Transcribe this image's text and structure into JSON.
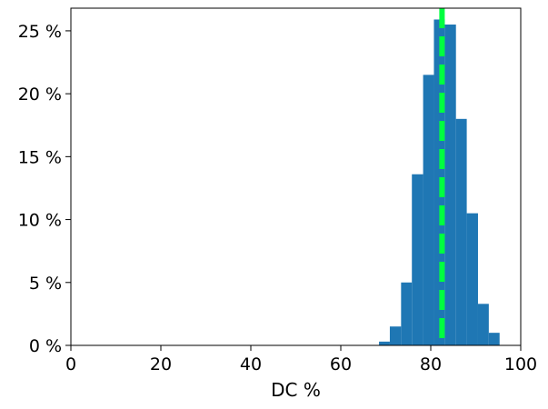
{
  "chart_data": {
    "type": "bar",
    "xlabel": "DC %",
    "ylabel": "",
    "xlim": [
      0,
      100
    ],
    "ylim": [
      0,
      26.8
    ],
    "x_ticks": [
      0,
      20,
      40,
      60,
      80,
      100
    ],
    "x_tick_labels": [
      "0",
      "20",
      "40",
      "60",
      "80",
      "100"
    ],
    "y_ticks": [
      0,
      5,
      10,
      15,
      20,
      25
    ],
    "y_tick_labels": [
      "0 %",
      "5 %",
      "10 %",
      "15 %",
      "20 %",
      "25 %"
    ],
    "grid": false,
    "bar_color": "#1f77b4",
    "bins": [
      {
        "x0": 68.5,
        "x1": 70.9,
        "value": 0.3
      },
      {
        "x0": 70.9,
        "x1": 73.4,
        "value": 1.5
      },
      {
        "x0": 73.4,
        "x1": 75.8,
        "value": 5.0
      },
      {
        "x0": 75.8,
        "x1": 78.3,
        "value": 13.6
      },
      {
        "x0": 78.3,
        "x1": 80.7,
        "value": 21.5
      },
      {
        "x0": 80.7,
        "x1": 83.1,
        "value": 25.9
      },
      {
        "x0": 83.1,
        "x1": 85.6,
        "value": 25.5
      },
      {
        "x0": 85.6,
        "x1": 88.0,
        "value": 18.0
      },
      {
        "x0": 88.0,
        "x1": 90.5,
        "value": 10.5
      },
      {
        "x0": 90.5,
        "x1": 92.9,
        "value": 3.3
      },
      {
        "x0": 92.9,
        "x1": 95.3,
        "value": 1.0
      }
    ],
    "reference_line": {
      "x": 82.5,
      "color": "#00ff40",
      "style": "dashed"
    }
  }
}
